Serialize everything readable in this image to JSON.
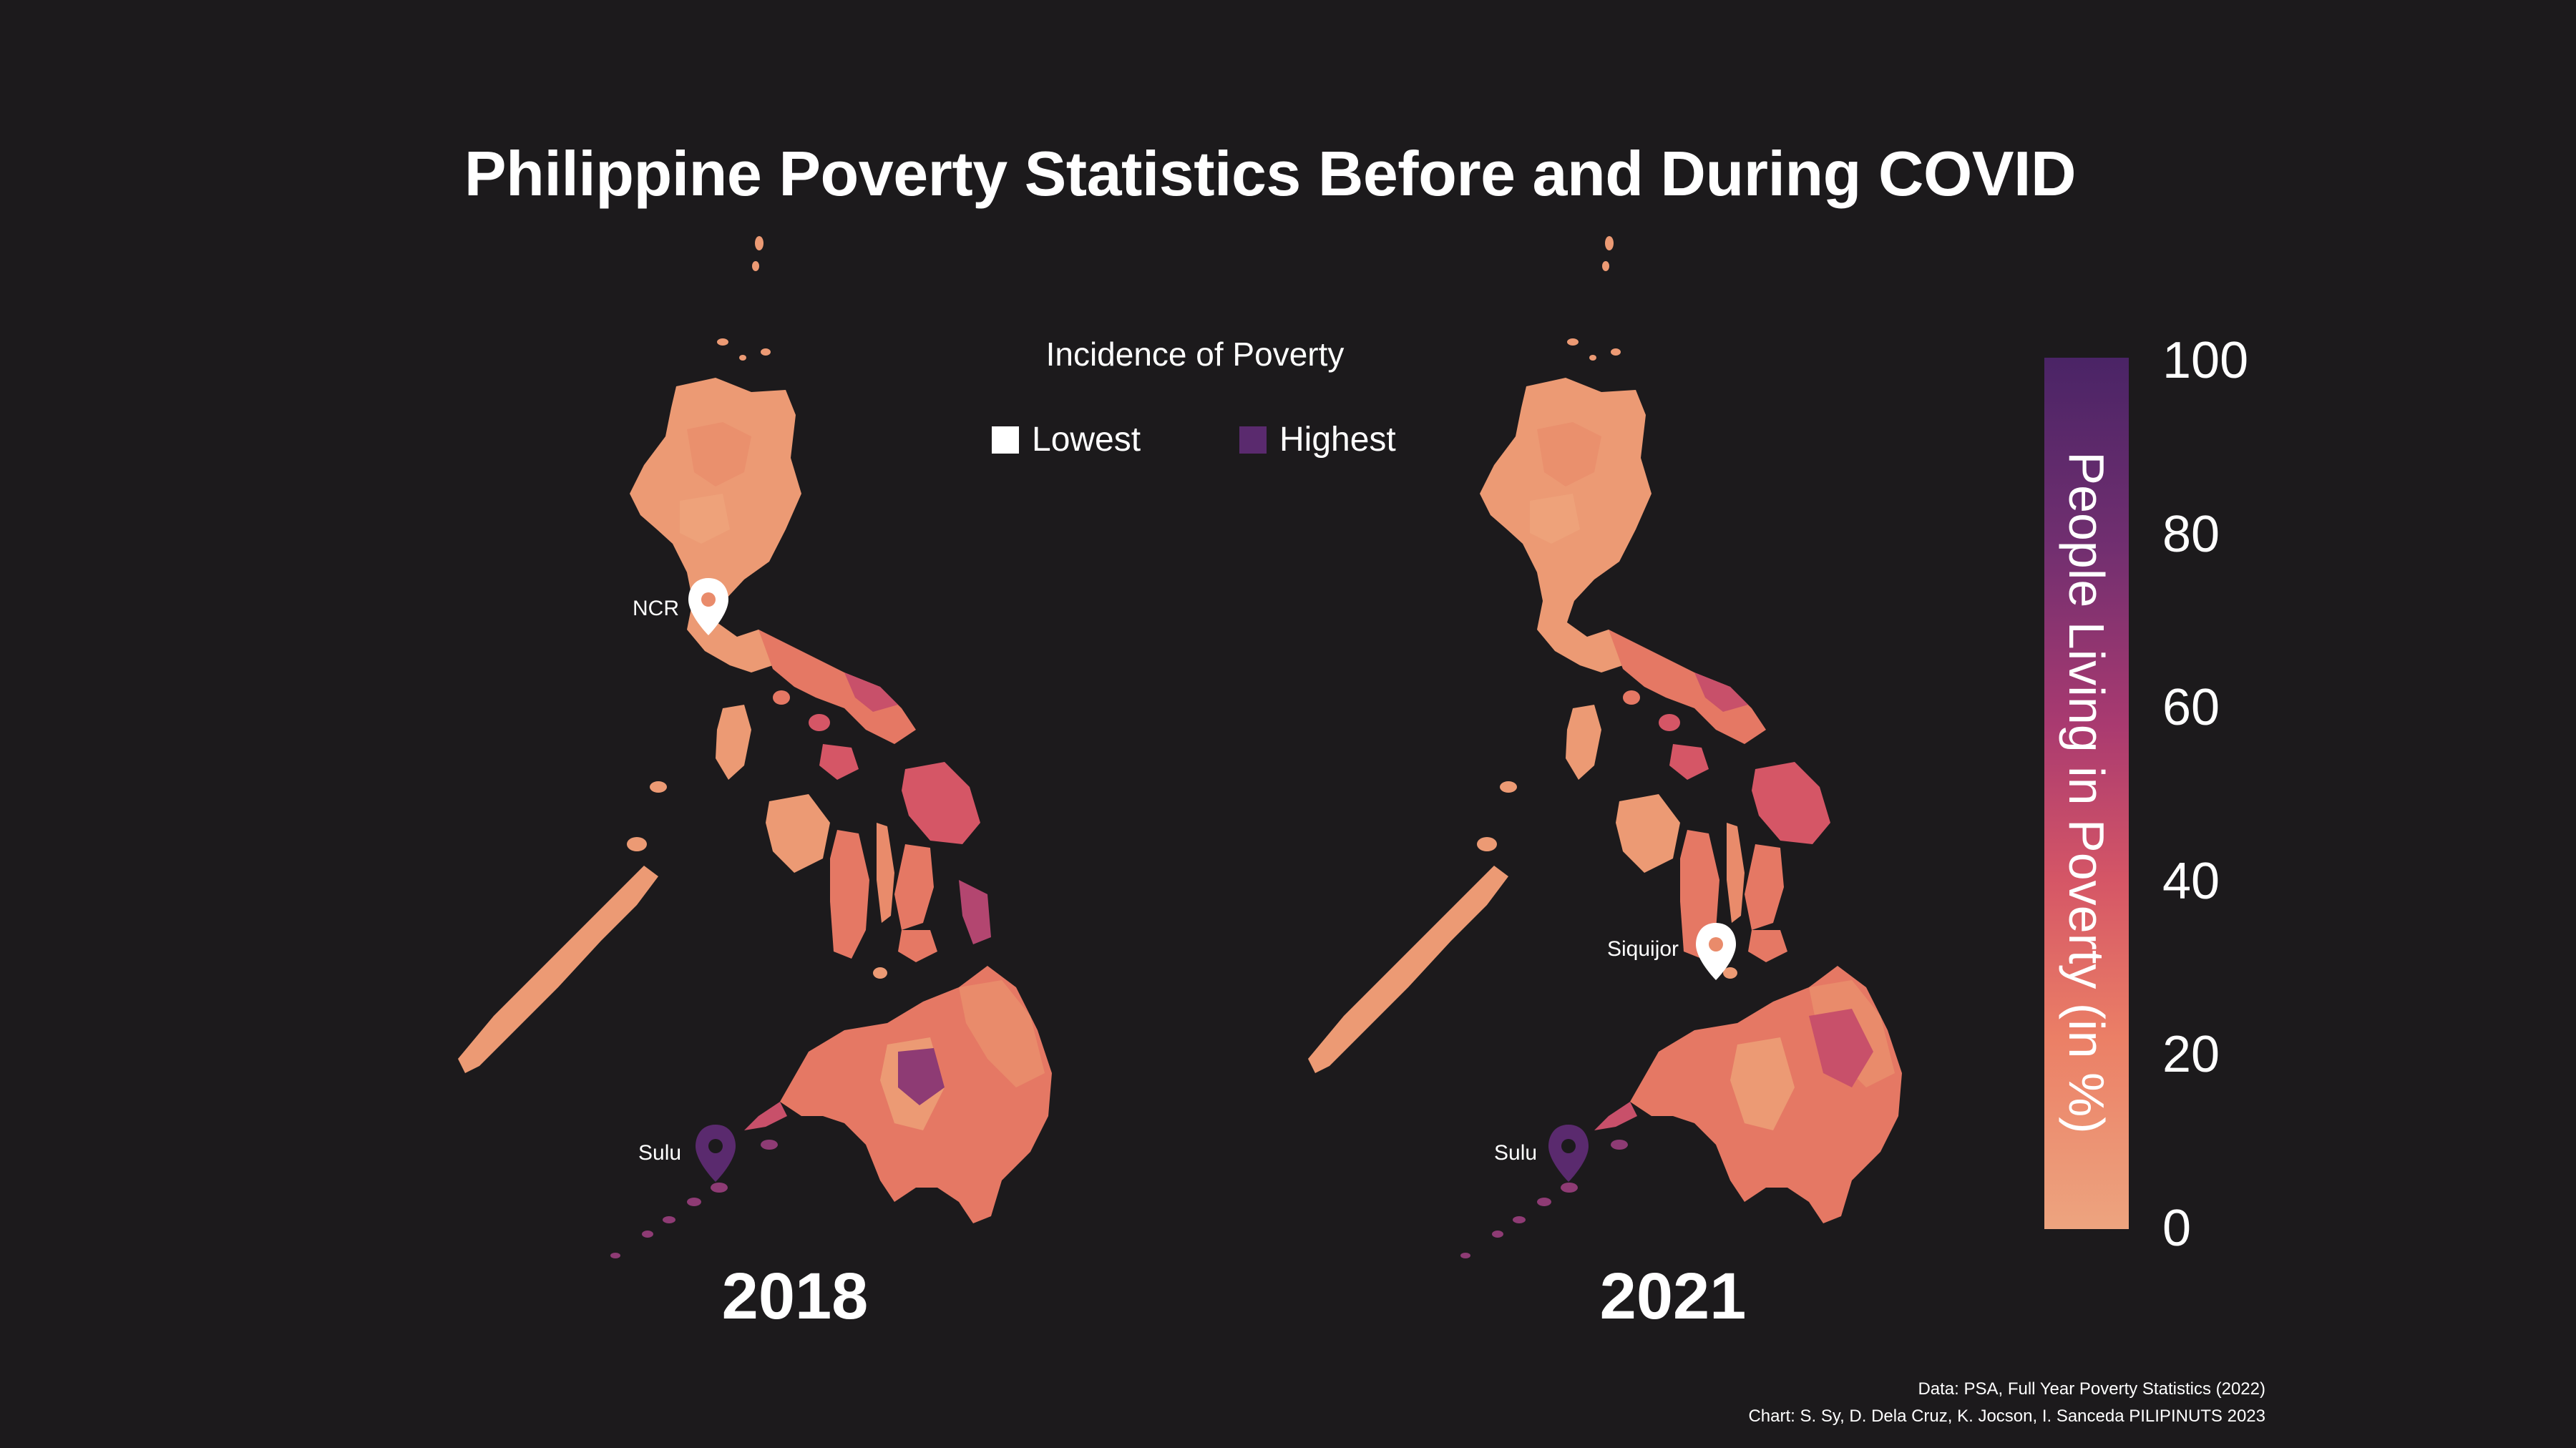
{
  "title": "Philippine Poverty Statistics Before and During COVID",
  "legend": {
    "title": "Incidence of Poverty",
    "lowest_label": "Lowest",
    "highest_label": "Highest",
    "lowest_color": "#ffffff",
    "highest_color": "#5a2a6e"
  },
  "maps": [
    {
      "year": "2018",
      "markers": [
        {
          "label": "NCR",
          "style": "white-pin"
        },
        {
          "label": "Sulu",
          "style": "purple-pin"
        }
      ]
    },
    {
      "year": "2021",
      "markers": [
        {
          "label": "Siquijor",
          "style": "white-pin"
        },
        {
          "label": "Sulu",
          "style": "purple-pin"
        }
      ]
    }
  ],
  "colorbar": {
    "title": "People Living in Poverty (in %)",
    "ticks": [
      "100",
      "80",
      "60",
      "40",
      "20",
      "0"
    ],
    "range": [
      0,
      100
    ],
    "colors": [
      "#eda47f",
      "#eb7f66",
      "#d55666",
      "#a93a70",
      "#722f70",
      "#4a2466"
    ]
  },
  "credits": {
    "data_line": "Data: PSA, Full Year Poverty Statistics (2022)",
    "chart_line": "Chart: S. Sy, D. Dela Cruz, K. Jocson, I. Sanceda PILIPINUTS 2023"
  }
}
